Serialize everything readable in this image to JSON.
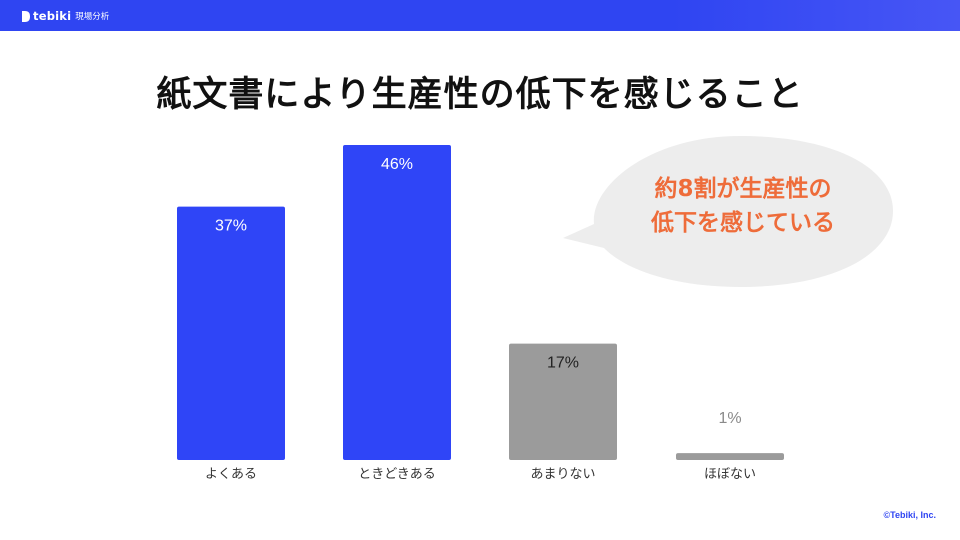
{
  "header": {
    "brand": "tebiki",
    "product": "現場分析"
  },
  "title": "紙文書により生産性の低下を感じること",
  "chart_data": {
    "type": "bar",
    "categories": [
      "よくある",
      "ときどきある",
      "あまりない",
      "ほぼない"
    ],
    "values": [
      37,
      46,
      17,
      1
    ],
    "value_labels": [
      "37%",
      "46%",
      "17%",
      "1%"
    ],
    "unit": "%",
    "ylim": [
      0,
      46
    ],
    "grid": false,
    "colors": [
      "#2f45f7",
      "#2f45f7",
      "#9b9b9b",
      "#9b9b9b"
    ],
    "label_colors": [
      "#ffffff",
      "#ffffff",
      "#222222",
      "#8a8a8a"
    ]
  },
  "callout": {
    "line1": "約8割が生産性の",
    "line2": "低下を感じている",
    "color": "#ee6c3a",
    "bubble_color": "#ededed"
  },
  "footer": {
    "copyright": "©Tebiki, Inc."
  },
  "colors": {
    "brand": "#2f45f2",
    "highlight_bar": "#2f45f7",
    "muted_bar": "#9b9b9b"
  }
}
